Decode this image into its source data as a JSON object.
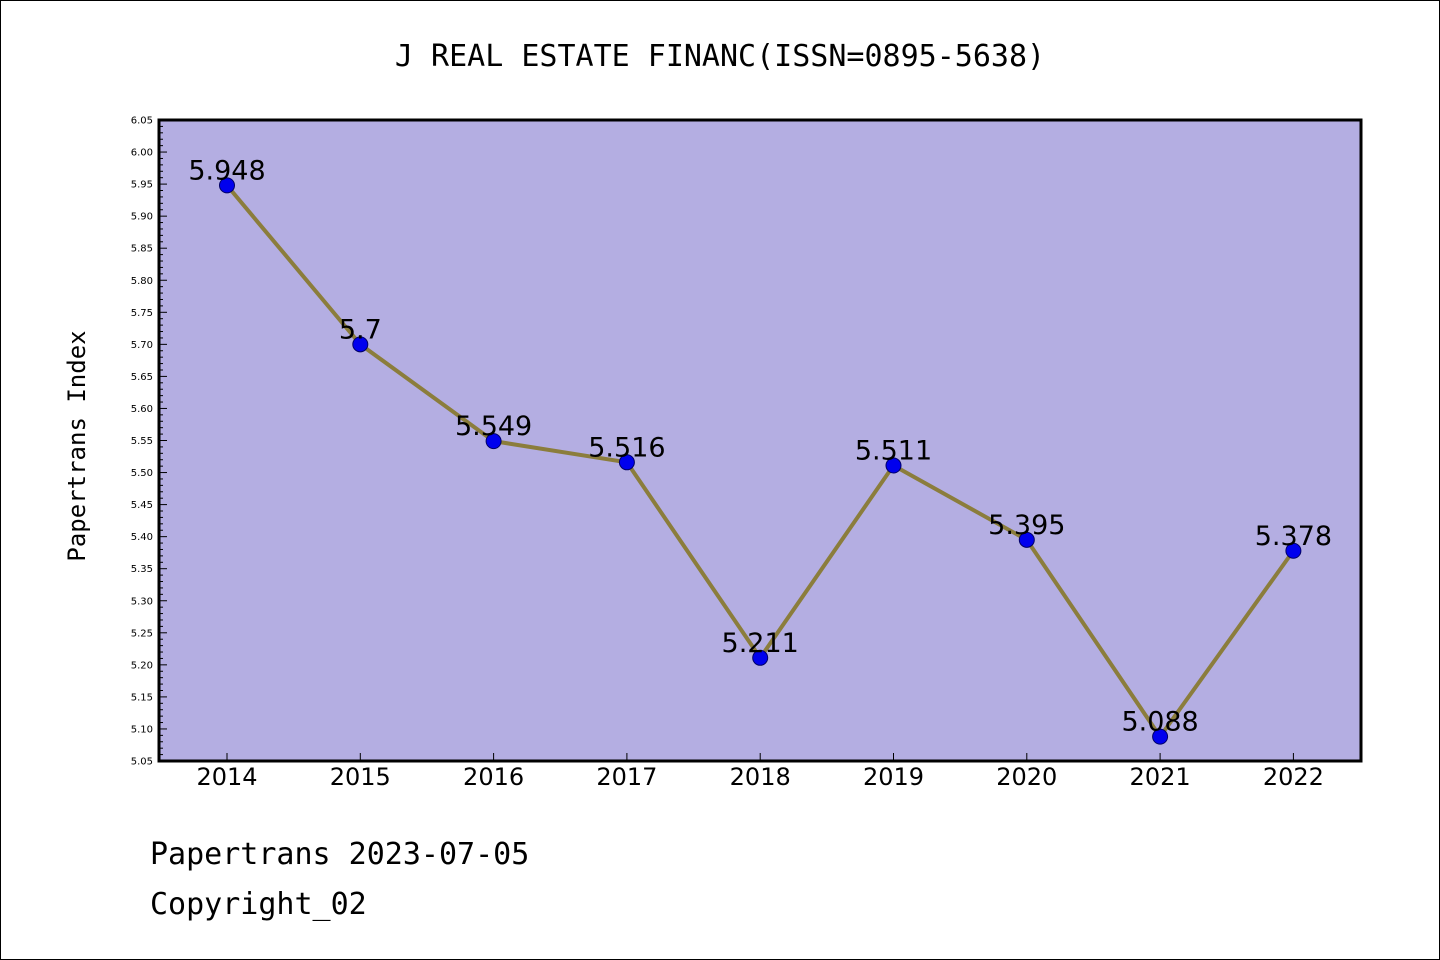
{
  "chart_data": {
    "type": "line",
    "title": "J REAL ESTATE FINANC(ISSN=0895-5638)",
    "ylabel": "Papertrans Index",
    "xlabel": "",
    "categories": [
      "2014",
      "2015",
      "2016",
      "2017",
      "2018",
      "2019",
      "2020",
      "2021",
      "2022"
    ],
    "values": [
      5.948,
      5.7,
      5.549,
      5.516,
      5.211,
      5.511,
      5.395,
      5.088,
      5.378
    ],
    "data_labels": [
      "5.948",
      "5.7",
      "5.549",
      "5.516",
      "5.211",
      "5.511",
      "5.395",
      "5.088",
      "5.378"
    ],
    "ylim": [
      5.05,
      6.05
    ],
    "yticks": [
      "5.05",
      "5.10",
      "5.15",
      "5.20",
      "5.25",
      "5.30",
      "5.35",
      "5.40",
      "5.45",
      "5.50",
      "5.55",
      "5.60",
      "5.65",
      "5.70",
      "5.75",
      "5.80",
      "5.85",
      "5.90",
      "5.95",
      "6.00",
      "6.05"
    ],
    "grid": false,
    "colors": {
      "plot_background": "#b4aee2",
      "line": "#8b7d3c",
      "marker": "#0000ee"
    }
  },
  "footer": {
    "line1": "Papertrans 2023-07-05",
    "line2": "Copyright_02"
  }
}
